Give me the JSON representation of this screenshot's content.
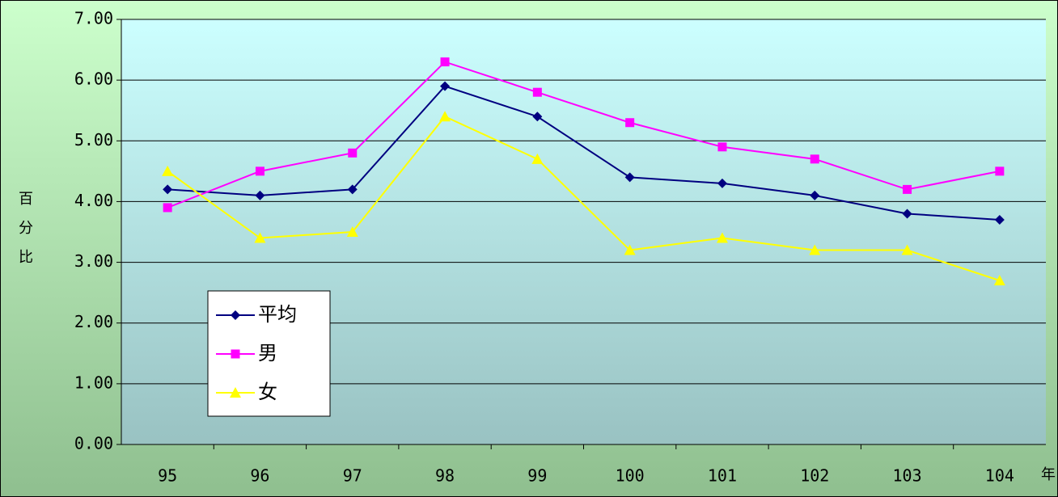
{
  "chart_data": {
    "type": "line",
    "y_axis_label": "百分比",
    "x_axis_label": "年",
    "categories": [
      "95",
      "96",
      "97",
      "98",
      "99",
      "100",
      "101",
      "102",
      "103",
      "104"
    ],
    "series": [
      {
        "name": "平均",
        "color": "#000080",
        "marker": "diamond",
        "values": [
          4.2,
          4.1,
          4.2,
          5.9,
          5.4,
          4.4,
          4.3,
          4.1,
          3.8,
          3.7
        ]
      },
      {
        "name": "男",
        "color": "#ff00ff",
        "marker": "square",
        "values": [
          3.9,
          4.5,
          4.8,
          6.3,
          5.8,
          5.3,
          4.9,
          4.7,
          4.2,
          4.5
        ]
      },
      {
        "name": "女",
        "color": "#ffff00",
        "marker": "triangle",
        "values": [
          4.5,
          3.4,
          3.5,
          5.4,
          4.7,
          3.2,
          3.4,
          3.2,
          3.2,
          2.7
        ]
      }
    ],
    "ylim": [
      0,
      7
    ],
    "yticks": [
      {
        "value": 0,
        "label": "0.00"
      },
      {
        "value": 1,
        "label": "1.00"
      },
      {
        "value": 2,
        "label": "2.00"
      },
      {
        "value": 3,
        "label": "3.00"
      },
      {
        "value": 4,
        "label": "4.00"
      },
      {
        "value": 5,
        "label": "5.00"
      },
      {
        "value": 6,
        "label": "6.00"
      },
      {
        "value": 7,
        "label": "7.00"
      }
    ],
    "grid": true,
    "legend": "lower left"
  }
}
